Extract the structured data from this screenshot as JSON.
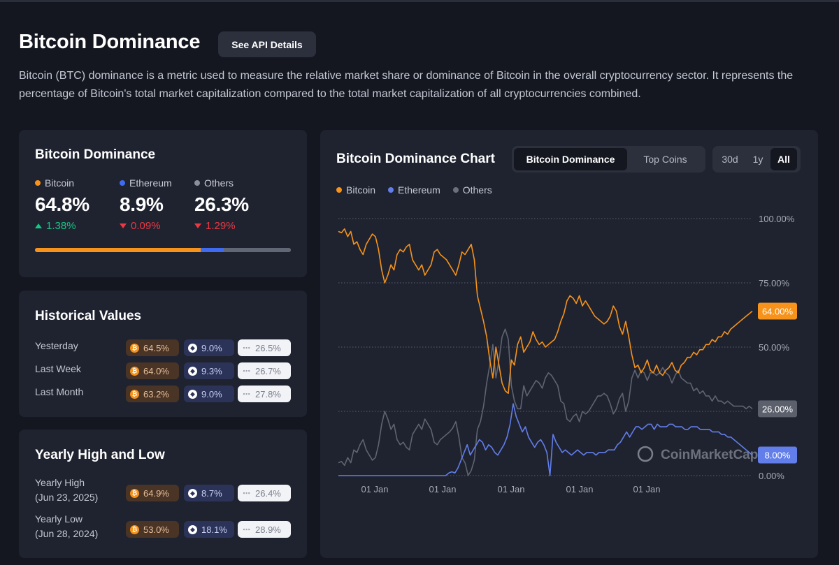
{
  "page": {
    "title": "Bitcoin Dominance",
    "api_button": "See API Details",
    "description": "Bitcoin (BTC) dominance is a metric used to measure the relative market share or dominance of Bitcoin in the overall cryptocurrency sector. It represents the percentage of Bitcoin's total market capitalization compared to the total market capitalization of all cryptocurrencies combined."
  },
  "colors": {
    "bitcoin": "#f7931a",
    "ethereum": "#627eea",
    "others": "#8a8f9c",
    "up": "#16c784",
    "down": "#ea3943"
  },
  "dominance": {
    "title": "Bitcoin Dominance",
    "items": [
      {
        "name": "Bitcoin",
        "value": "64.8%",
        "change": "1.38%",
        "direction": "up",
        "share": 64.8
      },
      {
        "name": "Ethereum",
        "value": "8.9%",
        "change": "0.09%",
        "direction": "down",
        "share": 8.9
      },
      {
        "name": "Others",
        "value": "26.3%",
        "change": "1.29%",
        "direction": "down",
        "share": 26.3
      }
    ]
  },
  "historical": {
    "title": "Historical Values",
    "rows": [
      {
        "label": "Yesterday",
        "btc": "64.5%",
        "eth": "9.0%",
        "others": "26.5%"
      },
      {
        "label": "Last Week",
        "btc": "64.0%",
        "eth": "9.3%",
        "others": "26.7%"
      },
      {
        "label": "Last Month",
        "btc": "63.2%",
        "eth": "9.0%",
        "others": "27.8%"
      }
    ]
  },
  "yearly": {
    "title": "Yearly High and Low",
    "rows": [
      {
        "label": "Yearly High",
        "date": "(Jun 23, 2025)",
        "btc": "64.9%",
        "eth": "8.7%",
        "others": "26.4%"
      },
      {
        "label": "Yearly Low",
        "date": "(Jun 28, 2024)",
        "btc": "53.0%",
        "eth": "18.1%",
        "others": "28.9%"
      }
    ]
  },
  "chart_panel": {
    "title": "Bitcoin Dominance Chart",
    "view_tabs": [
      {
        "label": "Bitcoin Dominance",
        "active": true
      },
      {
        "label": "Top Coins",
        "active": false
      }
    ],
    "range_tabs": [
      {
        "label": "30d",
        "active": false
      },
      {
        "label": "1y",
        "active": false
      },
      {
        "label": "All",
        "active": true
      }
    ],
    "legend": [
      "Bitcoin",
      "Ethereum",
      "Others"
    ],
    "watermark": "CoinMarketCap"
  },
  "chart_data": {
    "type": "line",
    "ylim": [
      0,
      100
    ],
    "y_ticks": [
      {
        "value": 0,
        "label": "0.00%"
      },
      {
        "value": 25,
        "label": "25.00%"
      },
      {
        "value": 50,
        "label": "50.00%"
      },
      {
        "value": 75,
        "label": "75.00%"
      },
      {
        "value": 100,
        "label": "100.00%"
      }
    ],
    "x_ticks": [
      "01 Jan",
      "01 Jan",
      "01 Jan",
      "01 Jan",
      "01 Jan"
    ],
    "grid": true,
    "legend_position": "top-left",
    "current_labels": [
      {
        "series": "Bitcoin",
        "label": "64.00%",
        "value": 64
      },
      {
        "series": "Others",
        "label": "26.00%",
        "value": 26
      },
      {
        "series": "Ethereum",
        "label": "8.00%",
        "value": 8
      }
    ],
    "series": [
      {
        "name": "Bitcoin",
        "color": "#f7931a",
        "values": [
          95,
          94.5,
          96,
          93,
          95,
          90,
          91,
          88,
          86,
          90,
          92,
          94,
          93,
          88,
          80,
          75,
          78,
          82,
          80,
          86,
          88,
          87,
          89,
          90,
          84,
          82,
          80,
          82,
          78,
          80,
          82,
          87,
          88,
          86,
          85,
          84,
          82,
          80,
          78,
          82,
          87,
          86,
          88,
          90,
          84,
          70,
          65,
          60,
          54,
          45,
          38,
          50,
          43,
          36,
          33,
          32,
          45,
          43,
          51,
          54,
          48,
          50,
          52,
          56,
          53,
          51,
          52,
          50,
          51,
          52,
          53,
          56,
          60,
          63,
          68,
          70,
          69,
          67,
          70,
          66,
          68,
          66,
          64,
          62,
          61,
          60,
          59,
          60,
          62,
          66,
          64,
          58,
          55,
          60,
          54,
          47,
          42,
          43,
          40,
          42,
          45,
          41,
          40,
          43,
          40,
          39,
          41,
          42,
          44,
          41,
          40,
          43,
          44,
          46,
          46,
          48,
          47,
          49,
          49,
          51,
          51,
          53,
          52,
          54,
          54,
          56,
          55,
          57,
          58,
          59,
          60,
          61,
          62,
          63,
          64
        ]
      },
      {
        "name": "Ethereum",
        "color": "#627eea",
        "values": [
          0,
          0,
          0,
          0,
          0,
          0,
          0,
          0,
          0,
          0,
          0,
          0,
          0,
          0,
          0,
          0,
          0,
          0,
          0,
          0,
          0,
          0,
          0,
          0,
          0,
          0,
          0,
          0,
          0,
          0,
          0,
          0,
          0,
          0,
          0,
          0,
          1,
          1.5,
          1,
          3,
          6,
          9,
          12,
          8,
          10,
          12,
          14,
          13,
          10,
          12,
          11,
          9,
          8,
          10,
          12,
          15,
          20,
          28,
          23,
          20,
          17,
          19,
          15,
          13,
          11,
          13,
          14,
          12,
          9,
          0,
          16,
          13,
          11,
          9,
          10,
          9,
          8,
          9,
          10,
          9,
          8,
          9,
          9,
          9,
          8,
          9,
          9,
          9,
          10,
          10,
          10,
          12,
          13,
          15,
          17,
          15,
          17,
          19,
          19,
          18,
          19,
          20,
          20,
          18,
          20,
          19,
          19,
          19,
          20,
          20,
          19,
          19,
          19,
          18,
          18,
          19,
          19,
          19,
          18,
          18,
          18,
          18,
          17,
          17,
          17,
          16,
          16,
          15,
          15,
          14,
          13,
          12,
          11,
          10,
          9,
          8
        ]
      },
      {
        "name": "Others",
        "color": "#8a8f9c",
        "values": [
          5,
          5.5,
          4,
          7,
          5,
          10,
          9,
          12,
          14,
          10,
          8,
          6,
          7,
          12,
          20,
          25,
          22,
          18,
          20,
          14,
          12,
          13,
          11,
          10,
          16,
          18,
          20,
          18,
          22,
          20,
          18,
          13,
          12,
          14,
          15,
          16,
          17,
          18.5,
          21,
          15,
          7,
          5,
          0,
          2,
          6,
          18,
          21,
          27,
          36,
          43,
          51,
          38,
          45,
          54,
          57,
          53,
          35,
          29,
          26,
          26,
          35,
          31,
          33,
          35,
          37,
          36,
          34,
          38,
          40,
          39,
          37,
          35,
          29,
          28,
          22,
          21,
          23,
          24,
          21,
          25,
          24,
          25,
          27,
          29,
          31,
          31,
          32,
          31,
          28,
          24,
          26,
          30,
          32,
          25,
          29,
          38,
          41,
          38,
          41,
          40,
          37,
          40,
          40,
          39,
          40,
          42,
          40,
          39,
          36,
          39,
          41,
          38,
          37,
          36,
          36,
          33,
          34,
          32,
          33,
          31,
          31,
          29,
          31,
          29,
          29,
          28,
          29,
          28,
          27,
          27,
          27,
          27,
          26,
          27,
          26
        ]
      }
    ]
  }
}
